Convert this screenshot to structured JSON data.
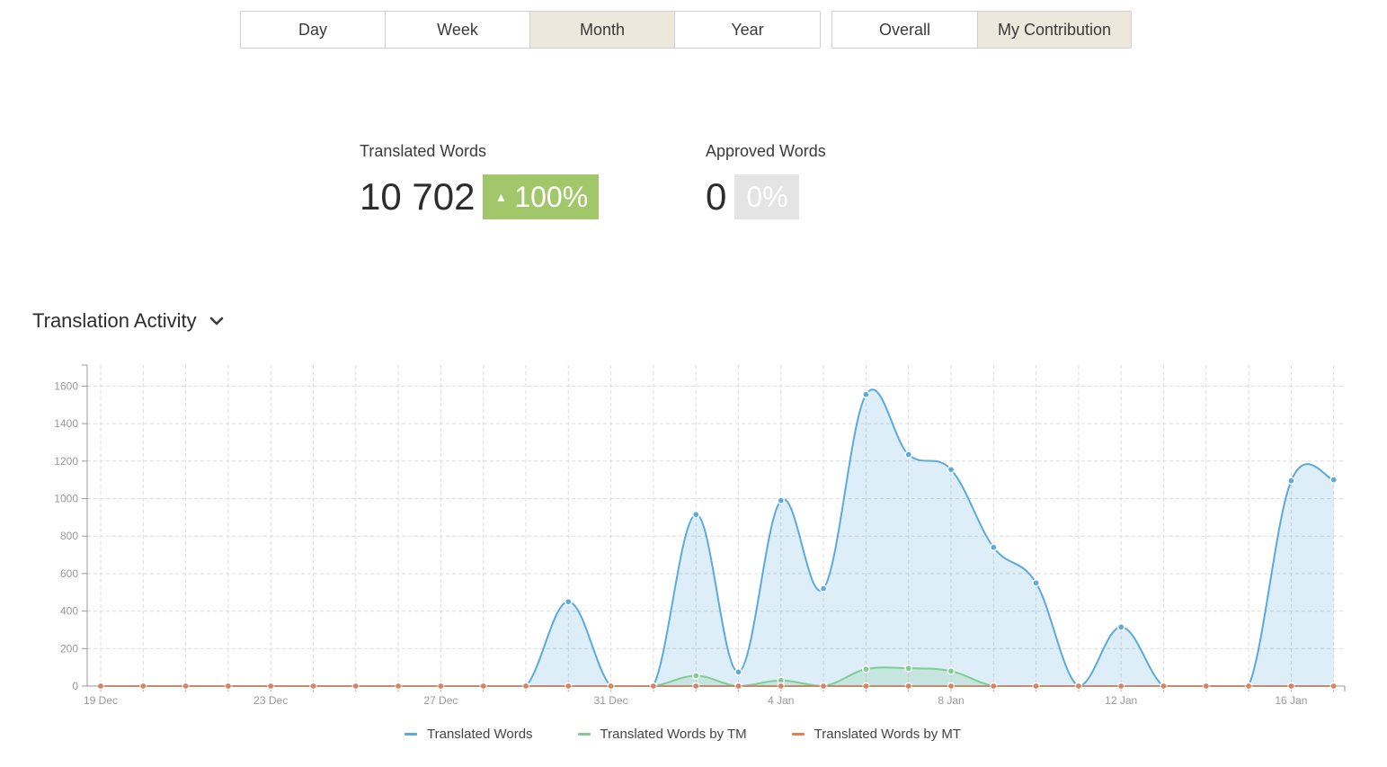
{
  "period_tabs": [
    {
      "label": "Day",
      "active": false
    },
    {
      "label": "Week",
      "active": false
    },
    {
      "label": "Month",
      "active": true
    },
    {
      "label": "Year",
      "active": false
    }
  ],
  "scope_tabs": [
    {
      "label": "Overall",
      "active": false
    },
    {
      "label": "My Contribution",
      "active": true
    }
  ],
  "stats": {
    "translated": {
      "label": "Translated Words",
      "value": "10 702",
      "change": "100%",
      "trend": "up",
      "color": "#a2c76a"
    },
    "approved": {
      "label": "Approved Words",
      "value": "0",
      "change": "0%",
      "trend": "none",
      "color": "#e4e4e4"
    }
  },
  "section": {
    "title": "Translation Activity",
    "toggle_icon": "chevron-down-icon"
  },
  "chart_data": {
    "type": "area",
    "x": [
      "19 Dec",
      "20 Dec",
      "21 Dec",
      "22 Dec",
      "23 Dec",
      "24 Dec",
      "25 Dec",
      "26 Dec",
      "27 Dec",
      "28 Dec",
      "29 Dec",
      "30 Dec",
      "31 Dec",
      "1 Jan",
      "2 Jan",
      "3 Jan",
      "4 Jan",
      "5 Jan",
      "6 Jan",
      "7 Jan",
      "8 Jan",
      "9 Jan",
      "10 Jan",
      "11 Jan",
      "12 Jan",
      "13 Jan",
      "14 Jan",
      "15 Jan",
      "16 Jan",
      "17 Jan"
    ],
    "x_tick_labels": [
      "19 Dec",
      "23 Dec",
      "27 Dec",
      "31 Dec",
      "4 Jan",
      "8 Jan",
      "12 Jan",
      "16 Jan"
    ],
    "y_ticks": [
      0,
      200,
      400,
      600,
      800,
      1000,
      1200,
      1400,
      1600
    ],
    "ylim": [
      0,
      1700
    ],
    "grid": true,
    "legend_position": "bottom",
    "series": [
      {
        "name": "Translated Words",
        "color": "#5aaadd",
        "fill": true,
        "values": [
          0,
          0,
          0,
          0,
          0,
          0,
          0,
          0,
          0,
          0,
          0,
          450,
          0,
          0,
          915,
          75,
          990,
          520,
          1555,
          1235,
          1155,
          740,
          550,
          0,
          315,
          0,
          0,
          0,
          1095,
          1100
        ]
      },
      {
        "name": "Translated Words by TM",
        "color": "#80cc95",
        "fill": true,
        "values": [
          0,
          0,
          0,
          0,
          0,
          0,
          0,
          0,
          0,
          0,
          0,
          0,
          0,
          0,
          55,
          0,
          30,
          0,
          90,
          95,
          80,
          0,
          0,
          0,
          0,
          0,
          0,
          0,
          0,
          0
        ]
      },
      {
        "name": "Translated Words by MT",
        "color": "#ef7b4b",
        "fill": false,
        "values": [
          0,
          0,
          0,
          0,
          0,
          0,
          0,
          0,
          0,
          0,
          0,
          0,
          0,
          0,
          0,
          0,
          0,
          0,
          0,
          0,
          0,
          0,
          0,
          0,
          0,
          0,
          0,
          0,
          0,
          0
        ]
      }
    ]
  }
}
